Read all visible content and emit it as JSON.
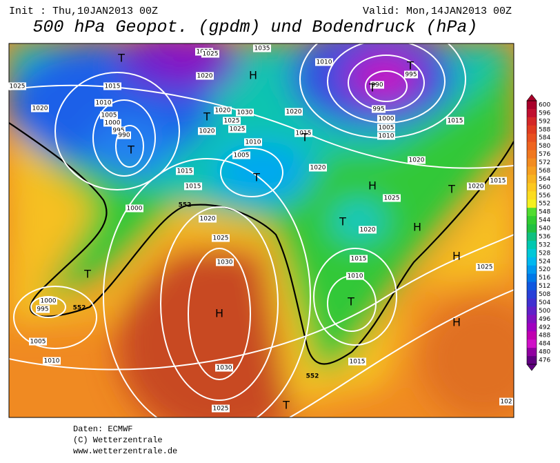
{
  "header": {
    "init": "Init : Thu,10JAN2013 00Z",
    "valid": "Valid: Mon,14JAN2013 00Z",
    "title": "500 hPa Geopot. (gpdm) und Bodendruck (hPa)"
  },
  "map": {
    "pressure_centers": [
      "T",
      "H",
      "T",
      "T",
      "T",
      "T",
      "H",
      "T",
      "T",
      "H",
      "H",
      "T",
      "H",
      "T",
      "H",
      "T",
      "T",
      "T"
    ],
    "isobar_labels": [
      1030,
      1025,
      1035,
      1020,
      1010,
      1025,
      1015,
      1020,
      1010,
      1005,
      1000,
      995,
      990,
      1020,
      1030,
      1025,
      1025,
      1020,
      1020,
      1015,
      1010,
      1005,
      1015,
      1015,
      1000,
      1020,
      1025,
      1030,
      1020,
      1020,
      1020,
      1015,
      1025,
      1020,
      1015,
      1010,
      1025,
      1015,
      1030,
      1025,
      1010,
      1005,
      1000,
      995,
      1015,
      990,
      995,
      995,
      1000,
      1005,
      1010,
      102
    ],
    "contour_labels": [
      552,
      552,
      552
    ]
  },
  "colorbar": {
    "ticks": [
      600,
      596,
      592,
      588,
      584,
      580,
      576,
      572,
      568,
      564,
      560,
      556,
      552,
      548,
      544,
      540,
      536,
      532,
      528,
      524,
      520,
      516,
      512,
      508,
      504,
      500,
      496,
      492,
      488,
      484,
      480,
      476
    ],
    "colors": [
      "#a8002a",
      "#c01030",
      "#d42828",
      "#e03c20",
      "#e85020",
      "#ee6420",
      "#f07820",
      "#f28c20",
      "#f6a020",
      "#f8b420",
      "#fcc820",
      "#fcdc20",
      "#f4f020",
      "#50dc30",
      "#30cc30",
      "#20c040",
      "#10c080",
      "#00c8b0",
      "#00c8d8",
      "#00b8f0",
      "#0098f0",
      "#0078e8",
      "#1058e0",
      "#2840d8",
      "#4030d0",
      "#6020c8",
      "#8010c0",
      "#a000c0",
      "#c000b0",
      "#d010c8",
      "#9000a0",
      "#600080"
    ]
  },
  "footer": {
    "source": "Daten: ECMWF",
    "copyright": "(C) Wetterzentrale",
    "url": "www.wetterzentrale.de"
  }
}
